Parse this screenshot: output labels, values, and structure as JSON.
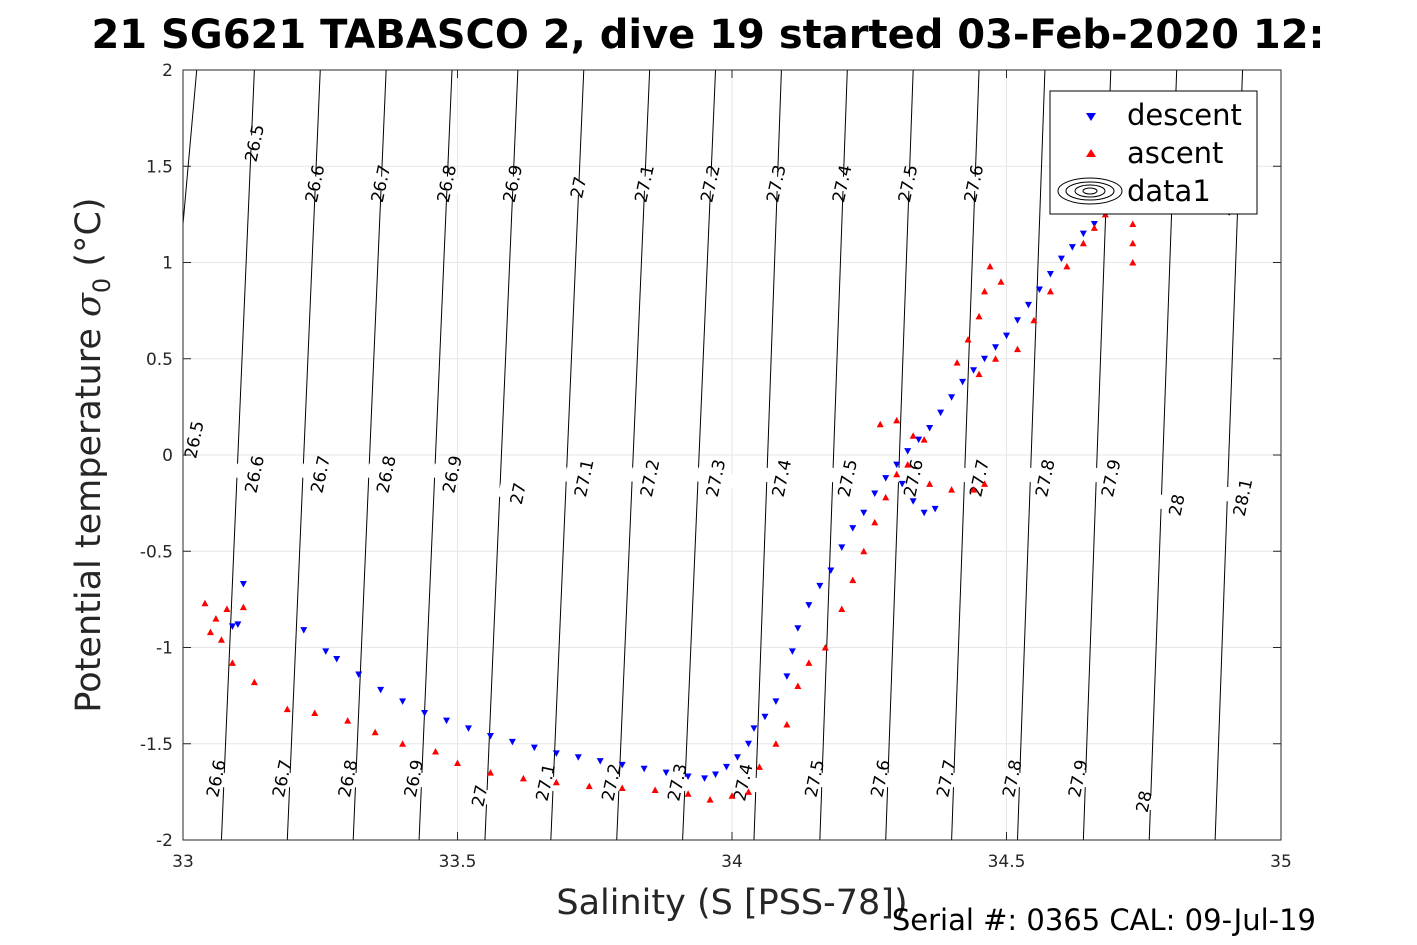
{
  "chart_data": {
    "type": "scatter",
    "title": "21 SG621 TABASCO 2, dive 19 started 03-Feb-2020 12:",
    "xlabel": "Salinity (S [PSS-78])",
    "ylabel_text": "Potential temperature ",
    "ylabel_sigma": "σ",
    "ylabel_sub": "0",
    "ylabel_unit": " (°C)",
    "xlim": [
      33,
      35
    ],
    "ylim": [
      -2,
      2
    ],
    "xticks": [
      33,
      33.5,
      34,
      34.5,
      35
    ],
    "xtick_labels": [
      "33",
      "33.5",
      "34",
      "34.5",
      "35"
    ],
    "yticks": [
      -2,
      -1.5,
      -1,
      -0.5,
      0,
      0.5,
      1,
      1.5,
      2
    ],
    "ytick_labels": [
      "-2",
      "-1.5",
      "-1",
      "-0.5",
      "0",
      "0.5",
      "1",
      "1.5",
      "2"
    ],
    "grid": true,
    "legend_position": "top-right",
    "legend": [
      "descent",
      "ascent",
      "data1"
    ],
    "footer": "Serial #: 0365  CAL: 09-Jul-19",
    "colors": {
      "descent": "#0000ff",
      "ascent": "#ff0000",
      "contour": "#000000",
      "grid": "#e6e6e6"
    },
    "contours": [
      {
        "label": "26.5",
        "xs_top": 33.025,
        "xs_bottom": 32.9
      },
      {
        "label": "26.6",
        "xs_top": 33.13,
        "xs_bottom": 33.07
      },
      {
        "label": "26.7",
        "xs_top": 33.25,
        "xs_bottom": 33.19
      },
      {
        "label": "26.8",
        "xs_top": 33.37,
        "xs_bottom": 33.31
      },
      {
        "label": "26.9",
        "xs_top": 33.49,
        "xs_bottom": 33.43
      },
      {
        "label": "27",
        "xs_top": 33.61,
        "xs_bottom": 33.55
      },
      {
        "label": "27.1",
        "xs_top": 33.73,
        "xs_bottom": 33.67
      },
      {
        "label": "27.2",
        "xs_top": 33.85,
        "xs_bottom": 33.79
      },
      {
        "label": "27.3",
        "xs_top": 33.97,
        "xs_bottom": 33.91
      },
      {
        "label": "27.4",
        "xs_top": 34.09,
        "xs_bottom": 34.04
      },
      {
        "label": "27.5",
        "xs_top": 34.21,
        "xs_bottom": 34.16
      },
      {
        "label": "27.6",
        "xs_top": 34.33,
        "xs_bottom": 34.28
      },
      {
        "label": "27.7",
        "xs_top": 34.45,
        "xs_bottom": 34.4
      },
      {
        "label": "27.8",
        "xs_top": 34.57,
        "xs_bottom": 34.52
      },
      {
        "label": "27.9",
        "xs_top": 34.69,
        "xs_bottom": 34.64
      },
      {
        "label": "28",
        "xs_top": 34.81,
        "xs_bottom": 34.76
      },
      {
        "label": "28.1",
        "xs_top": 34.93,
        "xs_bottom": 34.88
      }
    ],
    "contour_labels": [
      {
        "text": "26.5",
        "x": 33.13,
        "y": 1.62
      },
      {
        "text": "26.6",
        "x": 33.24,
        "y": 1.41
      },
      {
        "text": "26.7",
        "x": 33.36,
        "y": 1.41
      },
      {
        "text": "26.8",
        "x": 33.48,
        "y": 1.41
      },
      {
        "text": "26.9",
        "x": 33.6,
        "y": 1.41
      },
      {
        "text": "27",
        "x": 33.72,
        "y": 1.39
      },
      {
        "text": "27.1",
        "x": 33.84,
        "y": 1.41
      },
      {
        "text": "27.2",
        "x": 33.96,
        "y": 1.41
      },
      {
        "text": "27.3",
        "x": 34.08,
        "y": 1.41
      },
      {
        "text": "27.4",
        "x": 34.2,
        "y": 1.41
      },
      {
        "text": "27.5",
        "x": 34.32,
        "y": 1.41
      },
      {
        "text": "27.6",
        "x": 34.44,
        "y": 1.41
      },
      {
        "text": "28",
        "x": 34.9,
        "y": 1.3
      },
      {
        "text": "26.5",
        "x": 33.02,
        "y": 0.08
      },
      {
        "text": "26.6",
        "x": 33.13,
        "y": -0.1
      },
      {
        "text": "26.7",
        "x": 33.25,
        "y": -0.1
      },
      {
        "text": "26.8",
        "x": 33.37,
        "y": -0.1
      },
      {
        "text": "26.9",
        "x": 33.49,
        "y": -0.1
      },
      {
        "text": "27",
        "x": 33.61,
        "y": -0.2
      },
      {
        "text": "27.1",
        "x": 33.73,
        "y": -0.12
      },
      {
        "text": "27.2",
        "x": 33.85,
        "y": -0.12
      },
      {
        "text": "27.3",
        "x": 33.97,
        "y": -0.12
      },
      {
        "text": "27.4",
        "x": 34.09,
        "y": -0.12
      },
      {
        "text": "27.5",
        "x": 34.21,
        "y": -0.12
      },
      {
        "text": "27.6",
        "x": 34.33,
        "y": -0.12
      },
      {
        "text": "27.7",
        "x": 34.45,
        "y": -0.12
      },
      {
        "text": "27.8",
        "x": 34.57,
        "y": -0.12
      },
      {
        "text": "27.9",
        "x": 34.69,
        "y": -0.12
      },
      {
        "text": "28",
        "x": 34.81,
        "y": -0.26
      },
      {
        "text": "28.1",
        "x": 34.93,
        "y": -0.22
      },
      {
        "text": "26.6",
        "x": 33.06,
        "y": -1.68
      },
      {
        "text": "26.7",
        "x": 33.18,
        "y": -1.68
      },
      {
        "text": "26.8",
        "x": 33.3,
        "y": -1.68
      },
      {
        "text": "26.9",
        "x": 33.42,
        "y": -1.68
      },
      {
        "text": "27",
        "x": 33.54,
        "y": -1.77
      },
      {
        "text": "27.1",
        "x": 33.66,
        "y": -1.7
      },
      {
        "text": "27.2",
        "x": 33.78,
        "y": -1.7
      },
      {
        "text": "27.3",
        "x": 33.9,
        "y": -1.7
      },
      {
        "text": "27.4",
        "x": 34.02,
        "y": -1.7
      },
      {
        "text": "27.5",
        "x": 34.15,
        "y": -1.68
      },
      {
        "text": "27.6",
        "x": 34.27,
        "y": -1.68
      },
      {
        "text": "27.7",
        "x": 34.39,
        "y": -1.68
      },
      {
        "text": "27.8",
        "x": 34.51,
        "y": -1.68
      },
      {
        "text": "27.9",
        "x": 34.63,
        "y": -1.68
      },
      {
        "text": "28",
        "x": 34.75,
        "y": -1.8
      }
    ],
    "series": [
      {
        "name": "descent",
        "marker": "triangle-down",
        "points": [
          [
            33.11,
            -0.67
          ],
          [
            33.1,
            -0.88
          ],
          [
            33.09,
            -0.89
          ],
          [
            33.22,
            -0.91
          ],
          [
            33.26,
            -1.02
          ],
          [
            33.28,
            -1.06
          ],
          [
            33.32,
            -1.14
          ],
          [
            33.36,
            -1.22
          ],
          [
            33.4,
            -1.28
          ],
          [
            33.44,
            -1.34
          ],
          [
            33.48,
            -1.38
          ],
          [
            33.52,
            -1.42
          ],
          [
            33.56,
            -1.46
          ],
          [
            33.6,
            -1.49
          ],
          [
            33.64,
            -1.52
          ],
          [
            33.68,
            -1.55
          ],
          [
            33.72,
            -1.57
          ],
          [
            33.76,
            -1.59
          ],
          [
            33.8,
            -1.61
          ],
          [
            33.84,
            -1.63
          ],
          [
            33.88,
            -1.65
          ],
          [
            33.92,
            -1.67
          ],
          [
            33.95,
            -1.68
          ],
          [
            33.97,
            -1.66
          ],
          [
            33.99,
            -1.62
          ],
          [
            34.01,
            -1.57
          ],
          [
            34.03,
            -1.5
          ],
          [
            34.04,
            -1.42
          ],
          [
            34.06,
            -1.36
          ],
          [
            34.08,
            -1.28
          ],
          [
            34.1,
            -1.15
          ],
          [
            34.11,
            -1.02
          ],
          [
            34.12,
            -0.9
          ],
          [
            34.14,
            -0.78
          ],
          [
            34.16,
            -0.68
          ],
          [
            34.18,
            -0.6
          ],
          [
            34.2,
            -0.48
          ],
          [
            34.22,
            -0.38
          ],
          [
            34.24,
            -0.3
          ],
          [
            34.26,
            -0.2
          ],
          [
            34.28,
            -0.12
          ],
          [
            34.3,
            -0.05
          ],
          [
            34.32,
            0.02
          ],
          [
            34.34,
            0.08
          ],
          [
            34.36,
            0.14
          ],
          [
            34.38,
            0.22
          ],
          [
            34.4,
            0.3
          ],
          [
            34.42,
            0.38
          ],
          [
            34.44,
            0.44
          ],
          [
            34.46,
            0.5
          ],
          [
            34.48,
            0.56
          ],
          [
            34.5,
            0.62
          ],
          [
            34.52,
            0.7
          ],
          [
            34.54,
            0.78
          ],
          [
            34.56,
            0.86
          ],
          [
            34.58,
            0.94
          ],
          [
            34.6,
            1.02
          ],
          [
            34.62,
            1.08
          ],
          [
            34.64,
            1.15
          ],
          [
            34.66,
            1.2
          ],
          [
            34.68,
            1.25
          ],
          [
            34.33,
            -0.24
          ],
          [
            34.35,
            -0.3
          ],
          [
            34.37,
            -0.28
          ],
          [
            34.31,
            -0.15
          ]
        ]
      },
      {
        "name": "ascent",
        "marker": "triangle-up",
        "points": [
          [
            33.04,
            -0.77
          ],
          [
            33.06,
            -0.85
          ],
          [
            33.05,
            -0.92
          ],
          [
            33.08,
            -0.8
          ],
          [
            33.11,
            -0.79
          ],
          [
            33.07,
            -0.96
          ],
          [
            33.09,
            -1.08
          ],
          [
            33.13,
            -1.18
          ],
          [
            33.19,
            -1.32
          ],
          [
            33.24,
            -1.34
          ],
          [
            33.3,
            -1.38
          ],
          [
            33.35,
            -1.44
          ],
          [
            33.4,
            -1.5
          ],
          [
            33.46,
            -1.54
          ],
          [
            33.5,
            -1.6
          ],
          [
            33.56,
            -1.65
          ],
          [
            33.62,
            -1.68
          ],
          [
            33.68,
            -1.7
          ],
          [
            33.74,
            -1.72
          ],
          [
            33.8,
            -1.73
          ],
          [
            33.86,
            -1.74
          ],
          [
            33.92,
            -1.76
          ],
          [
            33.96,
            -1.79
          ],
          [
            34.0,
            -1.77
          ],
          [
            34.03,
            -1.75
          ],
          [
            34.05,
            -1.62
          ],
          [
            34.08,
            -1.5
          ],
          [
            34.1,
            -1.4
          ],
          [
            34.12,
            -1.2
          ],
          [
            34.14,
            -1.08
          ],
          [
            34.17,
            -1.0
          ],
          [
            34.2,
            -0.8
          ],
          [
            34.22,
            -0.65
          ],
          [
            34.24,
            -0.5
          ],
          [
            34.26,
            -0.35
          ],
          [
            34.28,
            -0.22
          ],
          [
            34.3,
            -0.1
          ],
          [
            34.32,
            -0.05
          ],
          [
            34.36,
            -0.15
          ],
          [
            34.4,
            -0.18
          ],
          [
            34.44,
            -0.18
          ],
          [
            34.46,
            -0.15
          ],
          [
            34.27,
            0.16
          ],
          [
            34.3,
            0.18
          ],
          [
            34.33,
            0.1
          ],
          [
            34.35,
            0.08
          ],
          [
            34.41,
            0.48
          ],
          [
            34.43,
            0.6
          ],
          [
            34.45,
            0.72
          ],
          [
            34.46,
            0.85
          ],
          [
            34.47,
            0.98
          ],
          [
            34.49,
            0.9
          ],
          [
            34.45,
            0.42
          ],
          [
            34.48,
            0.5
          ],
          [
            34.52,
            0.55
          ],
          [
            34.55,
            0.7
          ],
          [
            34.58,
            0.85
          ],
          [
            34.61,
            0.98
          ],
          [
            34.64,
            1.1
          ],
          [
            34.66,
            1.18
          ],
          [
            34.68,
            1.25
          ],
          [
            34.73,
            1.0
          ],
          [
            34.73,
            1.1
          ],
          [
            34.73,
            1.2
          ],
          [
            34.73,
            1.28
          ]
        ]
      }
    ]
  }
}
